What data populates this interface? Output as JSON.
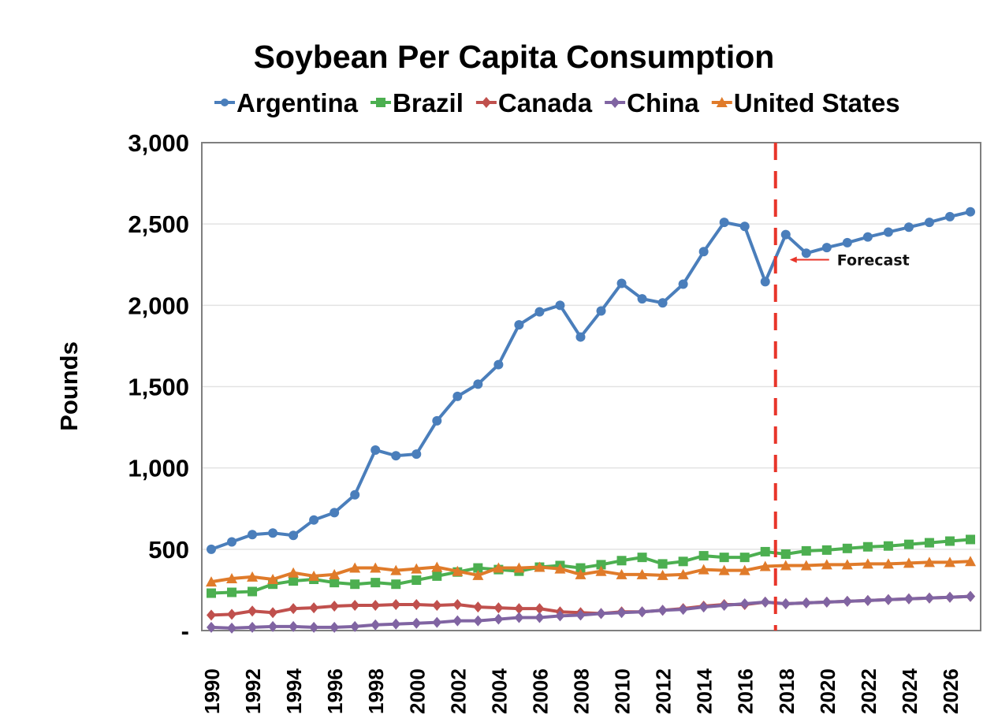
{
  "chart_data": {
    "type": "line",
    "title": "Soybean Per Capita Consumption",
    "xlabel": "",
    "ylabel": "Pounds",
    "ylim": [
      0,
      3000
    ],
    "yticks": [
      0,
      500,
      1000,
      1500,
      2000,
      2500,
      3000
    ],
    "ytick_labels": [
      "-",
      "500",
      "1,000",
      "1,500",
      "2,000",
      "2,500",
      "3,000"
    ],
    "xlim": [
      1990,
      2027
    ],
    "xtick_labels": [
      "1990",
      "1992",
      "1994",
      "1996",
      "1998",
      "2000",
      "2002",
      "2004",
      "2006",
      "2008",
      "2010",
      "2012",
      "2014",
      "2016",
      "2018",
      "2020",
      "2022",
      "2024",
      "2026"
    ],
    "grid": true,
    "legend_position": "top",
    "x": [
      1990,
      1991,
      1992,
      1993,
      1994,
      1995,
      1996,
      1997,
      1998,
      1999,
      2000,
      2001,
      2002,
      2003,
      2004,
      2005,
      2006,
      2007,
      2008,
      2009,
      2010,
      2011,
      2012,
      2013,
      2014,
      2015,
      2016,
      2017,
      2018,
      2019,
      2020,
      2021,
      2022,
      2023,
      2024,
      2025,
      2026,
      2027
    ],
    "series": [
      {
        "name": "Argentina",
        "color": "#4a7ebb",
        "marker": "circle",
        "values": [
          500,
          545,
          590,
          600,
          585,
          680,
          725,
          835,
          1110,
          1075,
          1085,
          1290,
          1440,
          1515,
          1635,
          1880,
          1960,
          2000,
          1805,
          1965,
          2135,
          2040,
          2015,
          2130,
          2330,
          2510,
          2485,
          2145,
          2435,
          2320,
          2355,
          2385,
          2420,
          2450,
          2480,
          2510,
          2545,
          2575
        ]
      },
      {
        "name": "Brazil",
        "color": "#4caf50",
        "marker": "square",
        "values": [
          230,
          235,
          240,
          285,
          305,
          315,
          295,
          285,
          295,
          285,
          310,
          335,
          360,
          385,
          375,
          365,
          390,
          400,
          385,
          405,
          430,
          450,
          410,
          425,
          460,
          450,
          450,
          485,
          470,
          490,
          495,
          505,
          515,
          520,
          530,
          540,
          550,
          560
        ]
      },
      {
        "name": "Canada",
        "color": "#c0504d",
        "marker": "diamond",
        "values": [
          95,
          100,
          120,
          110,
          135,
          140,
          150,
          155,
          155,
          160,
          160,
          155,
          160,
          145,
          140,
          135,
          135,
          115,
          110,
          105,
          115,
          115,
          125,
          135,
          150,
          160,
          160,
          175,
          165,
          170,
          175,
          180,
          185,
          190,
          195,
          200,
          205,
          210
        ]
      },
      {
        "name": "China",
        "color": "#8064a2",
        "marker": "diamond",
        "values": [
          20,
          15,
          20,
          25,
          25,
          20,
          20,
          25,
          35,
          40,
          45,
          50,
          60,
          60,
          70,
          80,
          80,
          90,
          95,
          105,
          110,
          115,
          125,
          130,
          145,
          155,
          165,
          175,
          165,
          170,
          175,
          180,
          185,
          190,
          195,
          200,
          205,
          210
        ]
      },
      {
        "name": "United States",
        "color": "#e07b2a",
        "marker": "triangle",
        "values": [
          300,
          320,
          330,
          315,
          355,
          335,
          345,
          385,
          385,
          370,
          380,
          390,
          365,
          340,
          385,
          385,
          390,
          380,
          345,
          365,
          345,
          345,
          340,
          345,
          375,
          370,
          370,
          395,
          400,
          400,
          405,
          405,
          410,
          410,
          415,
          420,
          420,
          425
        ]
      }
    ],
    "annotations": [
      {
        "type": "vertical-dashed-line",
        "x": 2017.5,
        "color": "#e8352a"
      },
      {
        "type": "arrow-label",
        "text": "Forecast",
        "x": 2018,
        "y": 2280,
        "arrow_color": "#e8352a"
      }
    ]
  }
}
